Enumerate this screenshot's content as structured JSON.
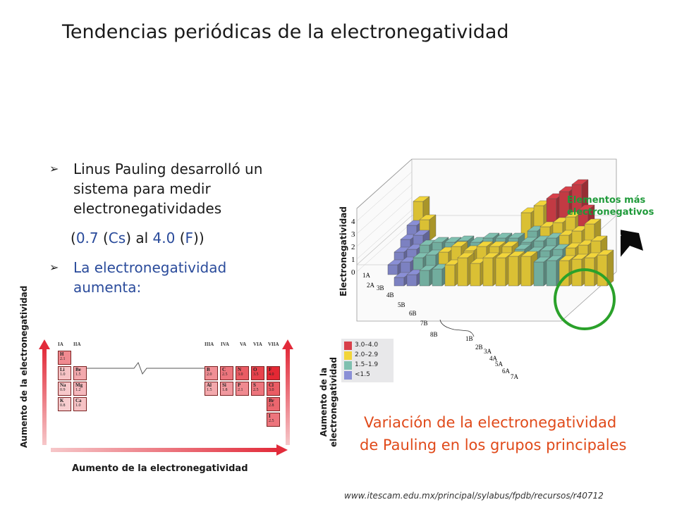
{
  "title": "Tendencias periódicas de la electronegatividad",
  "bullets": [
    {
      "text": "Linus Pauling desarrolló un sistema para medir electronegatividades"
    },
    {
      "text": "La electronegatividad aumenta:"
    }
  ],
  "range": {
    "open": "(",
    "min_value": "0.7",
    "min_symbol": "Cs",
    "mid_text": " al ",
    "max_value": "4.0",
    "max_symbol": "F",
    "close": ")"
  },
  "caption": {
    "line1": "Variación de la electronegatividad",
    "line2": "de Pauling en los grupos principales"
  },
  "callout": "Elementos más electronegativos",
  "source": "www.itescam.edu.mx/principal/sylabus/fpdb/recursos/r40712",
  "arrow_labels": {
    "horizontal": "Aumento de la electronegatividad",
    "vertical_left": "Aumento de la electronegatividad",
    "vertical_right": "Aumento de la electronegatividad"
  },
  "axis_3d": {
    "label": "Electronegatividad",
    "ticks": [
      "0",
      "1",
      "2",
      "3",
      "4"
    ]
  },
  "legend_3d": [
    {
      "label": "3.0–4.0",
      "color": "#d8404a"
    },
    {
      "label": "2.0–2.9",
      "color": "#f2d53a"
    },
    {
      "label": "1.5–1.9",
      "color": "#7fc0b0"
    },
    {
      "label": "<1.5",
      "color": "#8a8fd6"
    }
  ],
  "groups_3d": [
    "1A",
    "2A",
    "3B",
    "4B",
    "5B",
    "6B",
    "7B",
    "8B",
    "1B",
    "2B",
    "3A",
    "4A",
    "5A",
    "6A",
    "7A"
  ],
  "table_2d": {
    "group_headers": [
      "IA",
      "IIA",
      "IIIA",
      "IVA",
      "VA",
      "VIA",
      "VIIA"
    ],
    "cells": [
      {
        "symbol": "H",
        "value": "2.1"
      },
      {
        "symbol": "Li",
        "value": "1.0"
      },
      {
        "symbol": "Be",
        "value": "1.5"
      },
      {
        "symbol": "Na",
        "value": "0.9"
      },
      {
        "symbol": "Mg",
        "value": "1.2"
      },
      {
        "symbol": "K",
        "value": "0.8"
      },
      {
        "symbol": "Ca",
        "value": "1.0"
      },
      {
        "symbol": "B",
        "value": "2.0"
      },
      {
        "symbol": "C",
        "value": "2.5"
      },
      {
        "symbol": "N",
        "value": "3.0"
      },
      {
        "symbol": "O",
        "value": "3.5"
      },
      {
        "symbol": "F",
        "value": "4.0"
      },
      {
        "symbol": "Al",
        "value": "1.5"
      },
      {
        "symbol": "Si",
        "value": "1.8"
      },
      {
        "symbol": "P",
        "value": "2.1"
      },
      {
        "symbol": "S",
        "value": "2.5"
      },
      {
        "symbol": "Cl",
        "value": "3.0"
      },
      {
        "symbol": "Br",
        "value": "2.8"
      },
      {
        "symbol": "I",
        "value": "2.5"
      }
    ]
  }
}
